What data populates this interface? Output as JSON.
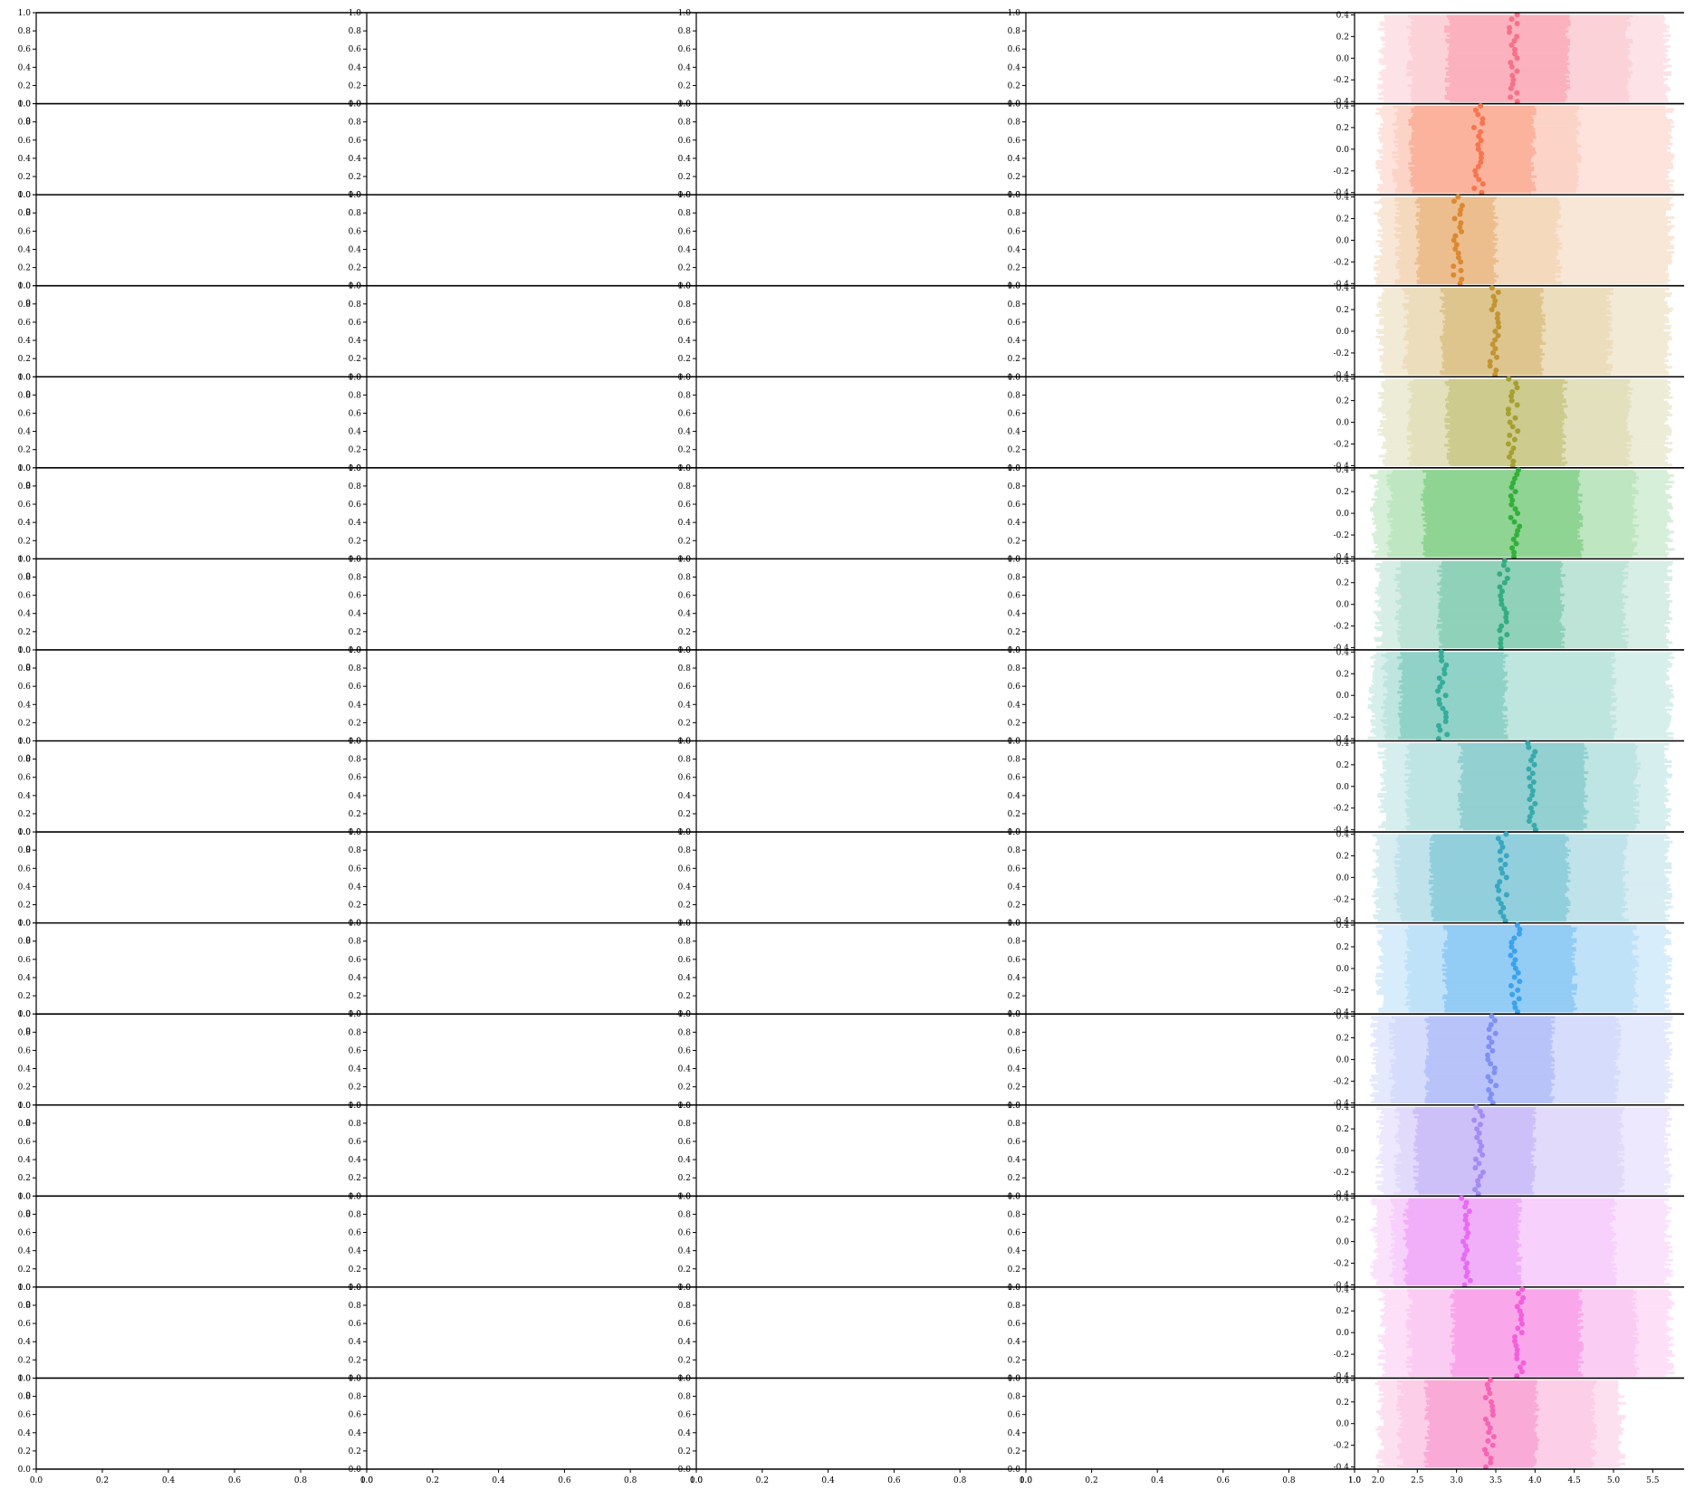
{
  "figure": {
    "rows": 16,
    "cols": 5
  },
  "empty_axes": {
    "y_ticks": [
      "0.0",
      "0.2",
      "0.4",
      "0.6",
      "0.8",
      "1.0"
    ],
    "x_ticks": [
      "0.0",
      "0.2",
      "0.4",
      "0.6",
      "0.8",
      "1.0"
    ],
    "row_label": "0"
  },
  "chart_data": {
    "type": "interval-band",
    "xlim": [
      1.7,
      5.9
    ],
    "ylim": [
      -0.42,
      0.42
    ],
    "x_ticks": [
      "2.0",
      "2.5",
      "3.0",
      "3.5",
      "4.0",
      "4.5",
      "5.0",
      "5.5"
    ],
    "y_ticks": [
      "-0.4",
      "-0.2",
      "0.0",
      "0.2",
      "0.4"
    ],
    "grid": false,
    "panels": [
      {
        "color": "#f77189",
        "center": 3.72,
        "inner": [
          2.88,
          4.42
        ],
        "mid": [
          2.4,
          5.2
        ],
        "outer": [
          2.05,
          5.68
        ]
      },
      {
        "color": "#f7754f",
        "center": 3.28,
        "inner": [
          2.42,
          3.98
        ],
        "mid": [
          2.22,
          4.55
        ],
        "outer": [
          2.02,
          5.72
        ]
      },
      {
        "color": "#dc8932",
        "center": 3.02,
        "inner": [
          2.5,
          3.5
        ],
        "mid": [
          2.25,
          4.3
        ],
        "outer": [
          2.0,
          5.72
        ]
      },
      {
        "color": "#c39532",
        "center": 3.48,
        "inner": [
          2.82,
          4.1
        ],
        "mid": [
          2.35,
          4.95
        ],
        "outer": [
          2.02,
          5.7
        ]
      },
      {
        "color": "#a6a032",
        "center": 3.72,
        "inner": [
          2.88,
          4.38
        ],
        "mid": [
          2.4,
          5.2
        ],
        "outer": [
          2.05,
          5.7
        ]
      },
      {
        "color": "#33b03a",
        "center": 3.75,
        "inner": [
          2.58,
          4.58
        ],
        "mid": [
          2.15,
          5.28
        ],
        "outer": [
          1.95,
          5.72
        ]
      },
      {
        "color": "#35ac81",
        "center": 3.6,
        "inner": [
          2.78,
          4.35
        ],
        "mid": [
          2.25,
          5.15
        ],
        "outer": [
          2.0,
          5.7
        ]
      },
      {
        "color": "#36ad9a",
        "center": 2.82,
        "inner": [
          2.28,
          3.62
        ],
        "mid": [
          2.08,
          5.0
        ],
        "outer": [
          1.92,
          5.72
        ]
      },
      {
        "color": "#38aaac",
        "center": 3.95,
        "inner": [
          3.05,
          4.65
        ],
        "mid": [
          2.38,
          5.3
        ],
        "outer": [
          2.05,
          5.7
        ]
      },
      {
        "color": "#39a7bf",
        "center": 3.58,
        "inner": [
          2.68,
          4.42
        ],
        "mid": [
          2.25,
          5.15
        ],
        "outer": [
          1.98,
          5.7
        ]
      },
      {
        "color": "#3ba3ec",
        "center": 3.75,
        "inner": [
          2.85,
          4.5
        ],
        "mid": [
          2.38,
          5.28
        ],
        "outer": [
          2.02,
          5.7
        ]
      },
      {
        "color": "#7e91f4",
        "center": 3.45,
        "inner": [
          2.62,
          4.22
        ],
        "mid": [
          2.18,
          5.05
        ],
        "outer": [
          1.95,
          5.7
        ]
      },
      {
        "color": "#a48cf4",
        "center": 3.28,
        "inner": [
          2.48,
          3.98
        ],
        "mid": [
          2.25,
          5.1
        ],
        "outer": [
          2.02,
          5.7
        ]
      },
      {
        "color": "#e56cf4",
        "center": 3.12,
        "inner": [
          2.35,
          3.8
        ],
        "mid": [
          2.18,
          5.0
        ],
        "outer": [
          1.95,
          5.7
        ]
      },
      {
        "color": "#f45fd9",
        "center": 3.8,
        "inner": [
          2.95,
          4.58
        ],
        "mid": [
          2.4,
          5.28
        ],
        "outer": [
          2.05,
          5.72
        ]
      },
      {
        "color": "#f565b5",
        "center": 3.42,
        "inner": [
          2.62,
          4.02
        ],
        "mid": [
          2.28,
          4.75
        ],
        "outer": [
          2.02,
          5.1
        ]
      }
    ]
  }
}
